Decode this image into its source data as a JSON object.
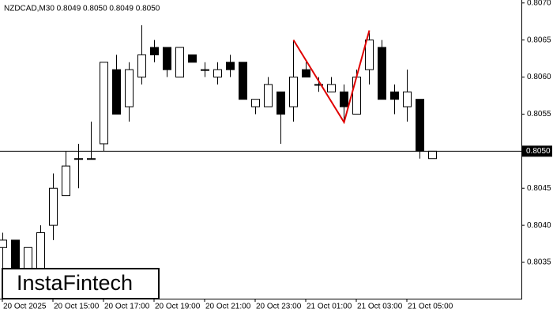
{
  "chart_data": {
    "type": "candlestick",
    "title": "NZDCAD,M30  0.8049 0.8050 0.8049 0.8050",
    "categories": [
      "20 Oct 2025",
      null,
      null,
      null,
      "20 Oct 15:00",
      null,
      null,
      null,
      "20 Oct 17:00",
      null,
      null,
      null,
      "20 Oct 19:00",
      null,
      null,
      null,
      "20 Oct 21:00",
      null,
      null,
      null,
      "20 Oct 23:00",
      null,
      null,
      null,
      "21 Oct 01:00",
      null,
      null,
      null,
      "21 Oct 03:00",
      null,
      null,
      null,
      "21 Oct 05:00",
      null,
      null
    ],
    "open": [
      0.8037,
      0.8038,
      0.8033,
      0.8034,
      0.804,
      0.8044,
      0.8049,
      0.8049,
      0.8051,
      0.8061,
      0.8056,
      0.806,
      0.8064,
      0.8064,
      0.806,
      0.8063,
      0.8061,
      0.806,
      0.8062,
      0.8062,
      0.8056,
      0.8056,
      0.8058,
      0.8056,
      0.8061,
      0.8059,
      0.8058,
      0.8058,
      0.8055,
      0.8061,
      0.8064,
      0.8058,
      0.8056,
      0.8057,
      0.8049
    ],
    "high": [
      0.8039,
      0.8038,
      0.8037,
      0.804,
      0.8047,
      0.805,
      0.8051,
      0.8054,
      0.8062,
      0.8063,
      0.8062,
      0.8067,
      0.8065,
      0.8064,
      0.8064,
      0.8063,
      0.8062,
      0.8062,
      0.8063,
      0.8062,
      0.8057,
      0.806,
      0.8058,
      0.8065,
      0.8062,
      0.806,
      0.806,
      0.8059,
      0.8061,
      0.8066,
      0.8065,
      0.8059,
      0.8061,
      0.8057,
      0.805
    ],
    "low": [
      0.8034,
      0.8033,
      0.8033,
      0.8033,
      0.8038,
      0.8044,
      0.8045,
      0.8049,
      0.805,
      0.8055,
      0.8054,
      0.8059,
      0.8062,
      0.806,
      0.806,
      0.8062,
      0.806,
      0.8059,
      0.806,
      0.8057,
      0.8055,
      0.8056,
      0.8051,
      0.8054,
      0.806,
      0.8058,
      0.8058,
      0.8054,
      0.8055,
      0.8059,
      0.8057,
      0.8055,
      0.8054,
      0.8049,
      0.8049
    ],
    "close": [
      0.8038,
      0.8033,
      0.8037,
      0.8039,
      0.8045,
      0.8048,
      0.8049,
      0.8049,
      0.8062,
      0.8055,
      0.8061,
      0.8063,
      0.8063,
      0.8061,
      0.8064,
      0.8062,
      0.8061,
      0.8061,
      0.8061,
      0.8057,
      0.8057,
      0.8059,
      0.8055,
      0.806,
      0.806,
      0.8059,
      0.8059,
      0.8056,
      0.806,
      0.8065,
      0.8057,
      0.8057,
      0.8058,
      0.805,
      0.805
    ],
    "up_color": "#ffffff",
    "down_color": "#000000",
    "ylim": [
      0.80301,
      0.80704
    ],
    "yticks": [
      {
        "value": 0.807,
        "label": "0.8070"
      },
      0.8065,
      {
        "value": 0.806,
        "label": "0.8060"
      },
      0.8055,
      0.8045,
      {
        "value": 0.804,
        "label": "0.8040"
      },
      0.8035
    ],
    "last_price": {
      "value": 0.805,
      "label": "0.8050"
    },
    "pattern": {
      "color": "#e00000",
      "x": [
        23,
        27,
        29
      ],
      "values": [
        0.8065,
        0.80539,
        0.80663
      ]
    },
    "watermark": "InstaFintech"
  }
}
